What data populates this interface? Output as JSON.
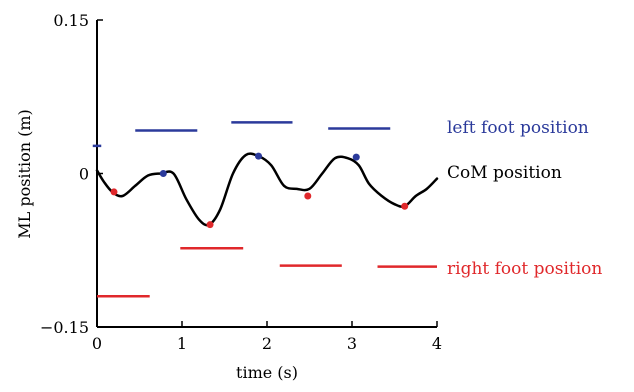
{
  "chart_data": {
    "type": "line",
    "title": "",
    "xlabel": "time (s)",
    "ylabel": "ML position (m)",
    "xlim": [
      0,
      4
    ],
    "ylim": [
      -0.15,
      0.15
    ],
    "xticks": [
      0,
      1,
      2,
      3,
      4
    ],
    "xtick_labels": [
      "0",
      "1",
      "2",
      "3",
      "4"
    ],
    "yticks": [
      -0.15,
      0,
      0.15
    ],
    "ytick_labels": [
      "−0.15",
      "0",
      "0.15"
    ],
    "grid": false,
    "series": [
      {
        "name": "CoM position",
        "color": "#000000",
        "x": [
          0.0,
          0.08,
          0.18,
          0.3,
          0.45,
          0.6,
          0.75,
          0.9,
          1.05,
          1.2,
          1.32,
          1.45,
          1.6,
          1.75,
          1.9,
          2.05,
          2.2,
          2.35,
          2.5,
          2.65,
          2.8,
          2.95,
          3.08,
          3.2,
          3.35,
          3.5,
          3.62,
          3.75,
          3.88,
          4.0
        ],
        "y": [
          0.003,
          -0.008,
          -0.018,
          -0.022,
          -0.012,
          -0.002,
          0.0,
          0.0,
          -0.025,
          -0.045,
          -0.05,
          -0.035,
          0.0,
          0.018,
          0.017,
          0.008,
          -0.012,
          -0.015,
          -0.015,
          0.0,
          0.015,
          0.015,
          0.008,
          -0.01,
          -0.022,
          -0.03,
          -0.032,
          -0.022,
          -0.015,
          -0.005
        ]
      },
      {
        "name": "left foot position",
        "color": "#2b3a9b",
        "segments": [
          {
            "x": [
              -0.05,
              0.05
            ],
            "y": 0.027
          },
          {
            "x": [
              0.45,
              1.18
            ],
            "y": 0.042
          },
          {
            "x": [
              1.58,
              2.3
            ],
            "y": 0.05
          },
          {
            "x": [
              2.72,
              3.45
            ],
            "y": 0.044
          }
        ]
      },
      {
        "name": "right foot position",
        "color": "#e0282b",
        "segments": [
          {
            "x": [
              0.0,
              0.62
            ],
            "y": -0.12
          },
          {
            "x": [
              0.98,
              1.72
            ],
            "y": -0.073
          },
          {
            "x": [
              2.15,
              2.88
            ],
            "y": -0.09
          },
          {
            "x": [
              3.3,
              4.0
            ],
            "y": -0.091
          }
        ]
      }
    ],
    "markers": {
      "blue": {
        "color": "#2b3a9b",
        "points": [
          {
            "x": 0.78,
            "y": 0.0
          },
          {
            "x": 1.9,
            "y": 0.017
          },
          {
            "x": 3.05,
            "y": 0.016
          }
        ]
      },
      "red": {
        "color": "#e0282b",
        "points": [
          {
            "x": 0.2,
            "y": -0.018
          },
          {
            "x": 1.33,
            "y": -0.05
          },
          {
            "x": 2.48,
            "y": -0.022
          },
          {
            "x": 3.62,
            "y": -0.032
          }
        ]
      }
    },
    "annotations": {
      "left_foot": {
        "text": "left foot position",
        "color": "#2b3a9b"
      },
      "com": {
        "text": "CoM position",
        "color": "#000000"
      },
      "right_foot": {
        "text": "right foot position",
        "color": "#e0282b"
      }
    }
  }
}
